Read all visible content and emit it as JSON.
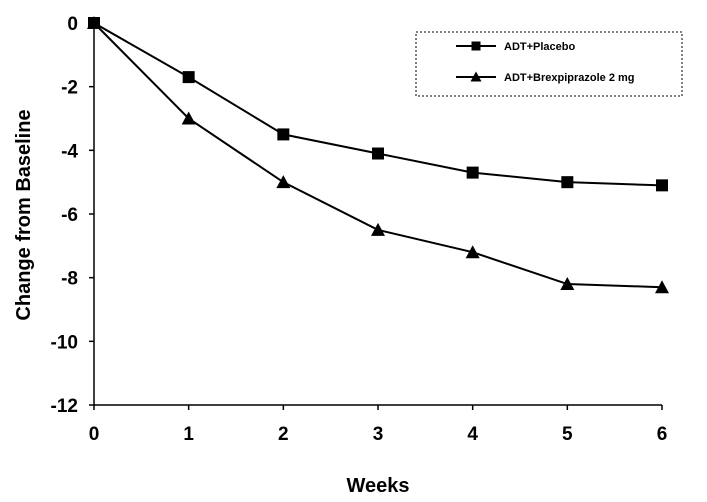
{
  "chart_data": {
    "type": "line",
    "title": "",
    "xlabel": "Weeks",
    "ylabel": "Change from Baseline",
    "x": [
      0,
      1,
      2,
      3,
      4,
      5,
      6
    ],
    "xlim": [
      0,
      6
    ],
    "ylim": [
      -12,
      0
    ],
    "xticks": [
      "0",
      "1",
      "2",
      "3",
      "4",
      "5",
      "6"
    ],
    "yticks": [
      "0",
      "-2",
      "-4",
      "-6",
      "-8",
      "-10",
      "-12"
    ],
    "grid": false,
    "legend_position": "top-right",
    "series": [
      {
        "name": "ADT+Placebo",
        "marker": "square",
        "color": "#000000",
        "values": [
          0,
          -1.7,
          -3.5,
          -4.1,
          -4.7,
          -5.0,
          -5.1
        ]
      },
      {
        "name": "ADT+Brexpiprazole 2 mg",
        "marker": "triangle",
        "color": "#000000",
        "values": [
          0,
          -3.0,
          -5.0,
          -6.5,
          -7.2,
          -8.2,
          -8.3
        ]
      }
    ]
  }
}
